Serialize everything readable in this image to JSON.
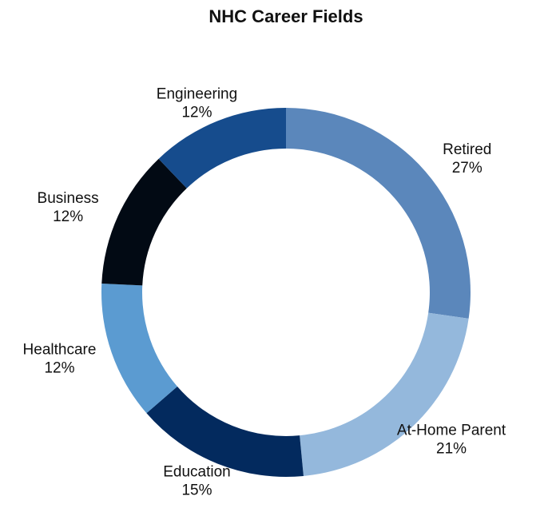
{
  "chart_data": {
    "type": "donut",
    "title": "NHC Career Fields",
    "categories": [
      "Retired",
      "At-Home Parent",
      "Education",
      "Healthcare",
      "Business",
      "Engineering"
    ],
    "values": [
      27,
      21,
      15,
      12,
      12,
      12
    ],
    "value_labels": [
      "27%",
      "21%",
      "15%",
      "12%",
      "12%",
      "12%"
    ],
    "colors": [
      "#5b87bb",
      "#94b8dc",
      "#032a5e",
      "#5b9bd1",
      "#020a14",
      "#164c8d"
    ]
  }
}
